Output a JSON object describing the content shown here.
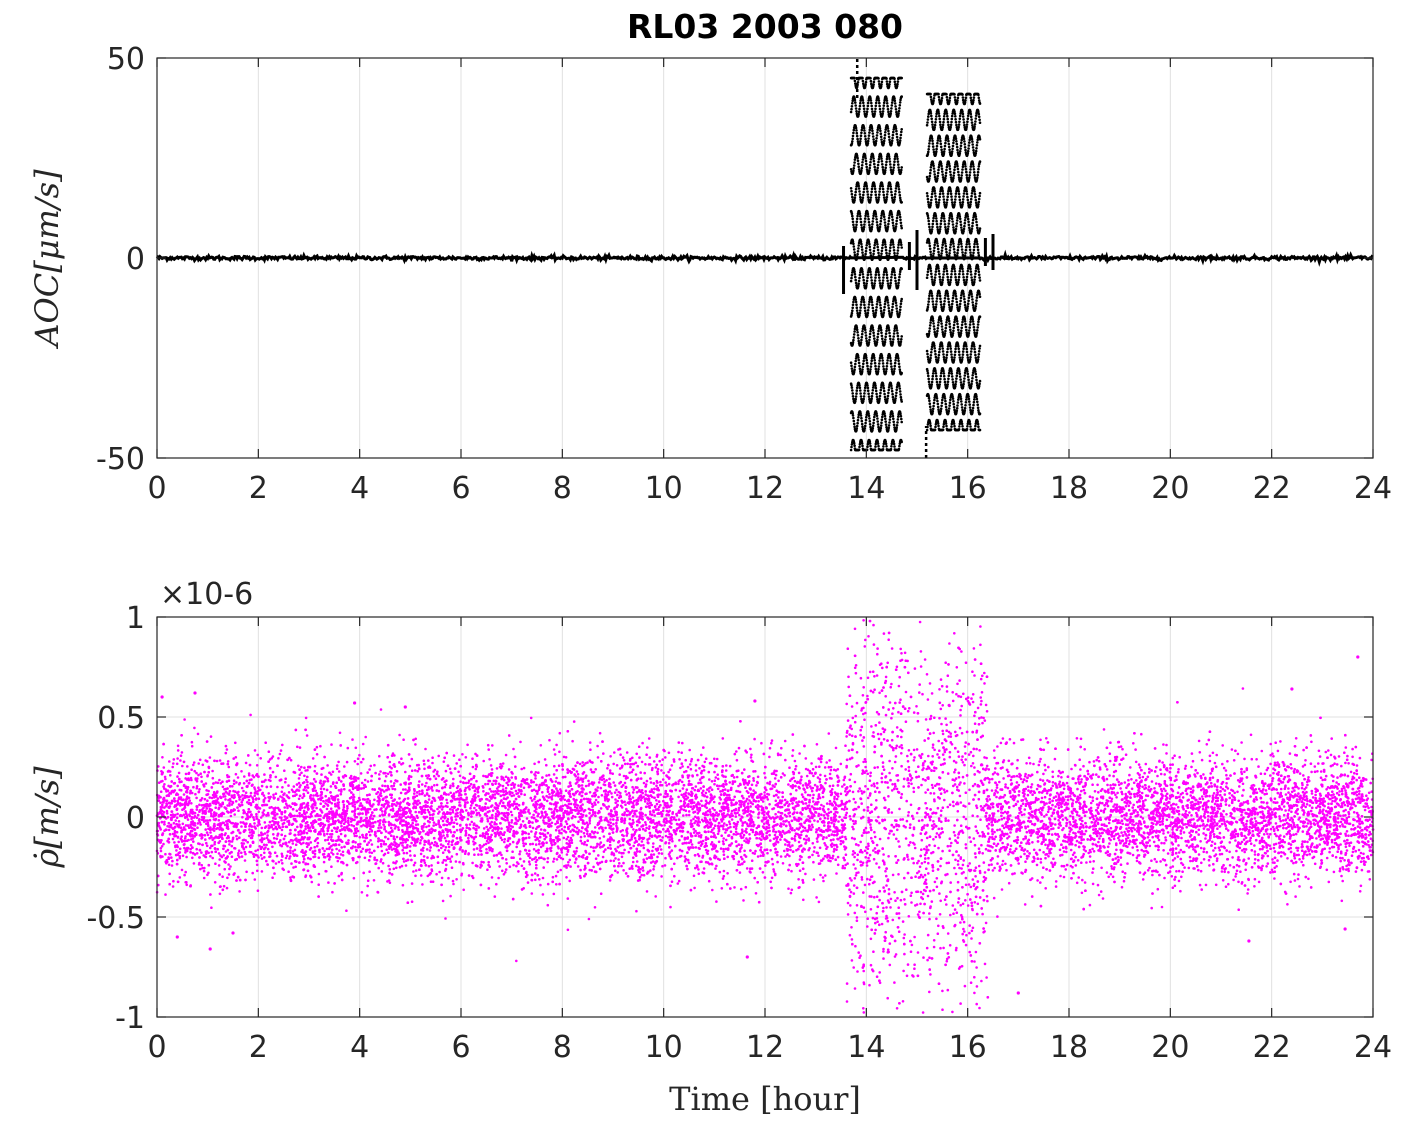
{
  "figure": {
    "title": "RL03  2003 080",
    "colors": {
      "aoc": "#000000",
      "range_rate": "#ff00ff",
      "grid": "#e0e0e0",
      "axis": "#262626"
    }
  },
  "chart_data": [
    {
      "type": "line",
      "ylabel": "AOC[μm/s]",
      "xlabel": "",
      "xlim": [
        0,
        24
      ],
      "ylim": [
        -50,
        50
      ],
      "xticks": [
        "0",
        "2",
        "4",
        "6",
        "8",
        "10",
        "12",
        "14",
        "16",
        "18",
        "20",
        "22",
        "24"
      ],
      "yticks": [
        "-50",
        "0",
        "50"
      ],
      "grid": true,
      "series": [
        {
          "color": "#000000",
          "style": "dotted",
          "baseline_noise_amplitude": 0.6,
          "active_segments": [
            {
              "x_start": 13.7,
              "x_end": 14.7,
              "ymin": -48,
              "ymax": 45
            },
            {
              "x_start": 15.2,
              "x_end": 16.25,
              "ymin": -43,
              "ymax": 41
            }
          ],
          "transients": [
            {
              "x": 13.55,
              "ymin": -9,
              "ymax": 3
            },
            {
              "x": 14.85,
              "ymin": -3,
              "ymax": 4
            },
            {
              "x": 15.0,
              "ymin": -8,
              "ymax": 7
            },
            {
              "x": 16.35,
              "ymin": -2,
              "ymax": 5
            },
            {
              "x": 16.5,
              "ymin": -3,
              "ymax": 6
            }
          ],
          "spikes": [
            {
              "x": 13.82,
              "ymin": 40,
              "ymax": 50
            },
            {
              "x": 15.18,
              "ymin": -50,
              "ymax": -42
            }
          ]
        }
      ]
    },
    {
      "type": "scatter",
      "ylabel": "ρ̇[m/s]",
      "xlabel": "Time [hour]",
      "exponent_label": "×10-6",
      "xlim": [
        0,
        24
      ],
      "ylim": [
        -1,
        1
      ],
      "y_scale_factor": 1e-06,
      "xticks": [
        "0",
        "2",
        "4",
        "6",
        "8",
        "10",
        "12",
        "14",
        "16",
        "18",
        "20",
        "22",
        "24"
      ],
      "yticks": [
        "-1",
        "-0.5",
        "0",
        "0.5",
        "1"
      ],
      "grid": true,
      "series": [
        {
          "color": "#ff00ff",
          "marker": "point",
          "point_count": 14000,
          "baseline_std": 0.15,
          "disturbed_window": {
            "x_start": 13.6,
            "x_end": 16.4,
            "spread": 0.45
          },
          "outliers": [
            {
              "x": 0.1,
              "y": 0.6
            },
            {
              "x": 0.75,
              "y": 0.62
            },
            {
              "x": 1.05,
              "y": -0.66
            },
            {
              "x": 3.9,
              "y": 0.57
            },
            {
              "x": 4.9,
              "y": 0.55
            },
            {
              "x": 11.65,
              "y": -0.7
            },
            {
              "x": 11.8,
              "y": 0.58
            },
            {
              "x": 17.0,
              "y": -0.88
            },
            {
              "x": 21.55,
              "y": -0.62
            },
            {
              "x": 22.4,
              "y": 0.64
            },
            {
              "x": 23.7,
              "y": 0.8
            },
            {
              "x": 0.4,
              "y": -0.6
            },
            {
              "x": 1.5,
              "y": -0.58
            },
            {
              "x": 23.45,
              "y": -0.56
            }
          ]
        }
      ]
    }
  ]
}
